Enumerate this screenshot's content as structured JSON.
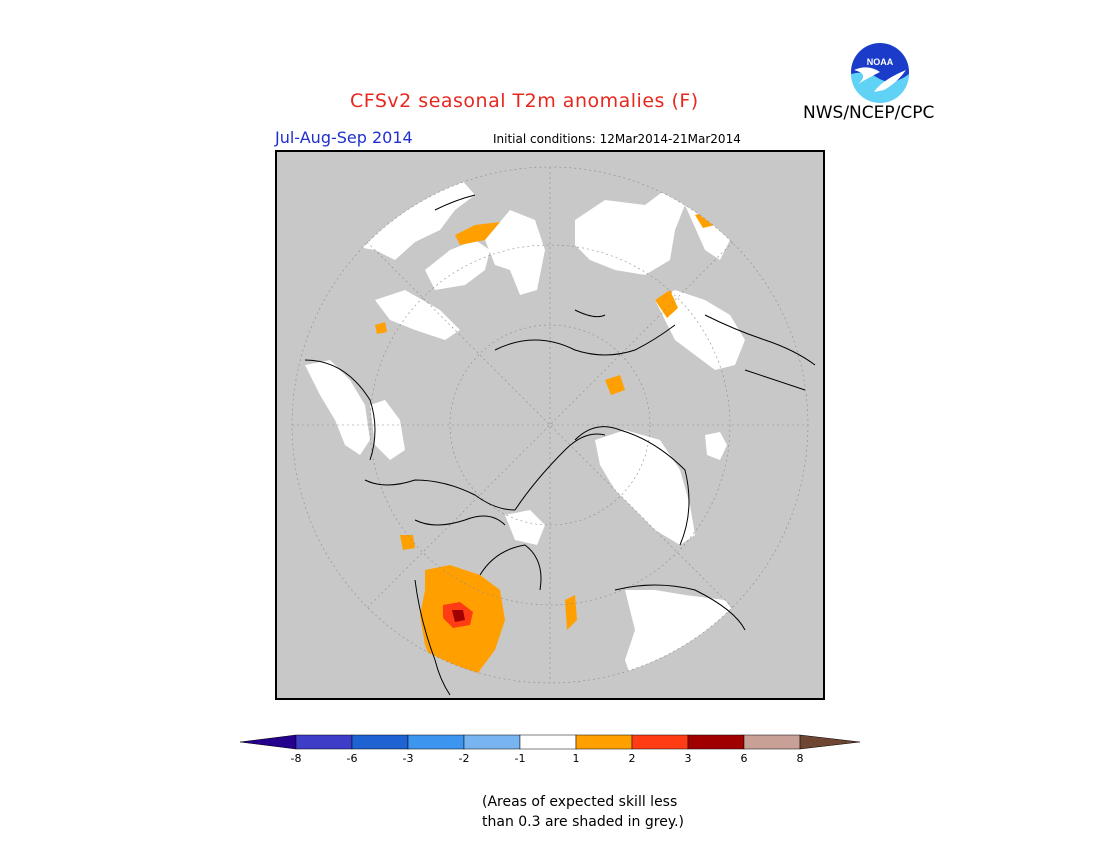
{
  "header": {
    "title": "CFSv2 seasonal T2m anomalies (F)",
    "agency": "NWS/NCEP/CPC",
    "season": "Jul-Aug-Sep 2014",
    "initial_conditions": "Initial conditions: 12Mar2014-21Mar2014",
    "logo_text": "NOAA"
  },
  "legend": {
    "ticks": [
      "-8",
      "-6",
      "-3",
      "-2",
      "-1",
      "1",
      "2",
      "3",
      "6",
      "8"
    ],
    "colors": {
      "below_min": "#24008c",
      "c_-8_-6": "#3d3dc8",
      "c_-6_-3": "#1f63d2",
      "c_-3_-2": "#3c96f0",
      "c_-2_-1": "#78b4f0",
      "c_-1_1": "#ffffff",
      "c_1_2": "#ffa000",
      "c_2_3": "#ff3c14",
      "c_3_6": "#a00000",
      "c_6_8": "#c8a096",
      "above_max": "#6e4632"
    }
  },
  "footnote": {
    "line1": "(Areas of expected skill less",
    "line2": "than 0.3 are shaded in grey.)"
  },
  "map": {
    "projection": "north-polar-stereographic",
    "background_skill_mask_color": "#c8c8c8",
    "neutral_color": "#ffffff"
  }
}
